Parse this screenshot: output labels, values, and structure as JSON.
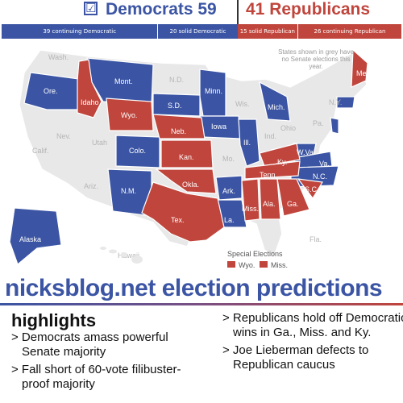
{
  "header": {
    "check_glyph": "☑",
    "democrats": "Democrats 59",
    "republicans": "41 Republicans",
    "colors": {
      "democrat": "#3b55a4",
      "republican": "#c0453c",
      "grey": "#e8e8e8"
    }
  },
  "seat_bar": [
    {
      "label": "39 continuing Democratic",
      "seats": 39,
      "color": "#3b55a4"
    },
    {
      "label": "20 solid Democratic",
      "seats": 20,
      "color": "#3b55a4"
    },
    {
      "label": "15 solid Republican",
      "seats": 15,
      "color": "#c0453c"
    },
    {
      "label": "26 continuing Republican",
      "seats": 26,
      "color": "#c0453c"
    }
  ],
  "map": {
    "note": "States shown in grey have no Senate elections this year.",
    "special_elections": {
      "title": "Special Elections",
      "items": [
        "Wyo.",
        "Miss."
      ]
    },
    "state_labels": {
      "democratic": [
        "Ore.",
        "Mont.",
        "Minn.",
        "S.D.",
        "Iowa",
        "Ill.",
        "Mich.",
        "Colo.",
        "N.M.",
        "Ark.",
        "La.",
        "W.Va.",
        "Va.",
        "N.C.",
        "Alaska"
      ],
      "republican": [
        "Idaho",
        "Wyo.",
        "Neb.",
        "Kan.",
        "Okla.",
        "Tex.",
        "Ky.",
        "Tenn.",
        "Miss.",
        "Ala.",
        "Ga.",
        "S.C.",
        "Me."
      ],
      "grey": [
        "Wash.",
        "Nev.",
        "Calif.",
        "Utah",
        "Ariz.",
        "N.D.",
        "Wis.",
        "Mo.",
        "Ind.",
        "Ohio",
        "Pa.",
        "N.Y.",
        "Fla.",
        "Hawaii"
      ]
    }
  },
  "site_title": "nicksblog.net election predictions",
  "highlights": {
    "heading": "highlights",
    "left": [
      "> Democrats amass powerful Senate majority",
      "> Fall short of 60-vote filibuster-proof majority"
    ],
    "right": [
      "> Republicans hold off Democratic wins in Ga., Miss. and Ky.",
      "> Joe Lieberman defects to Republican caucus"
    ]
  }
}
